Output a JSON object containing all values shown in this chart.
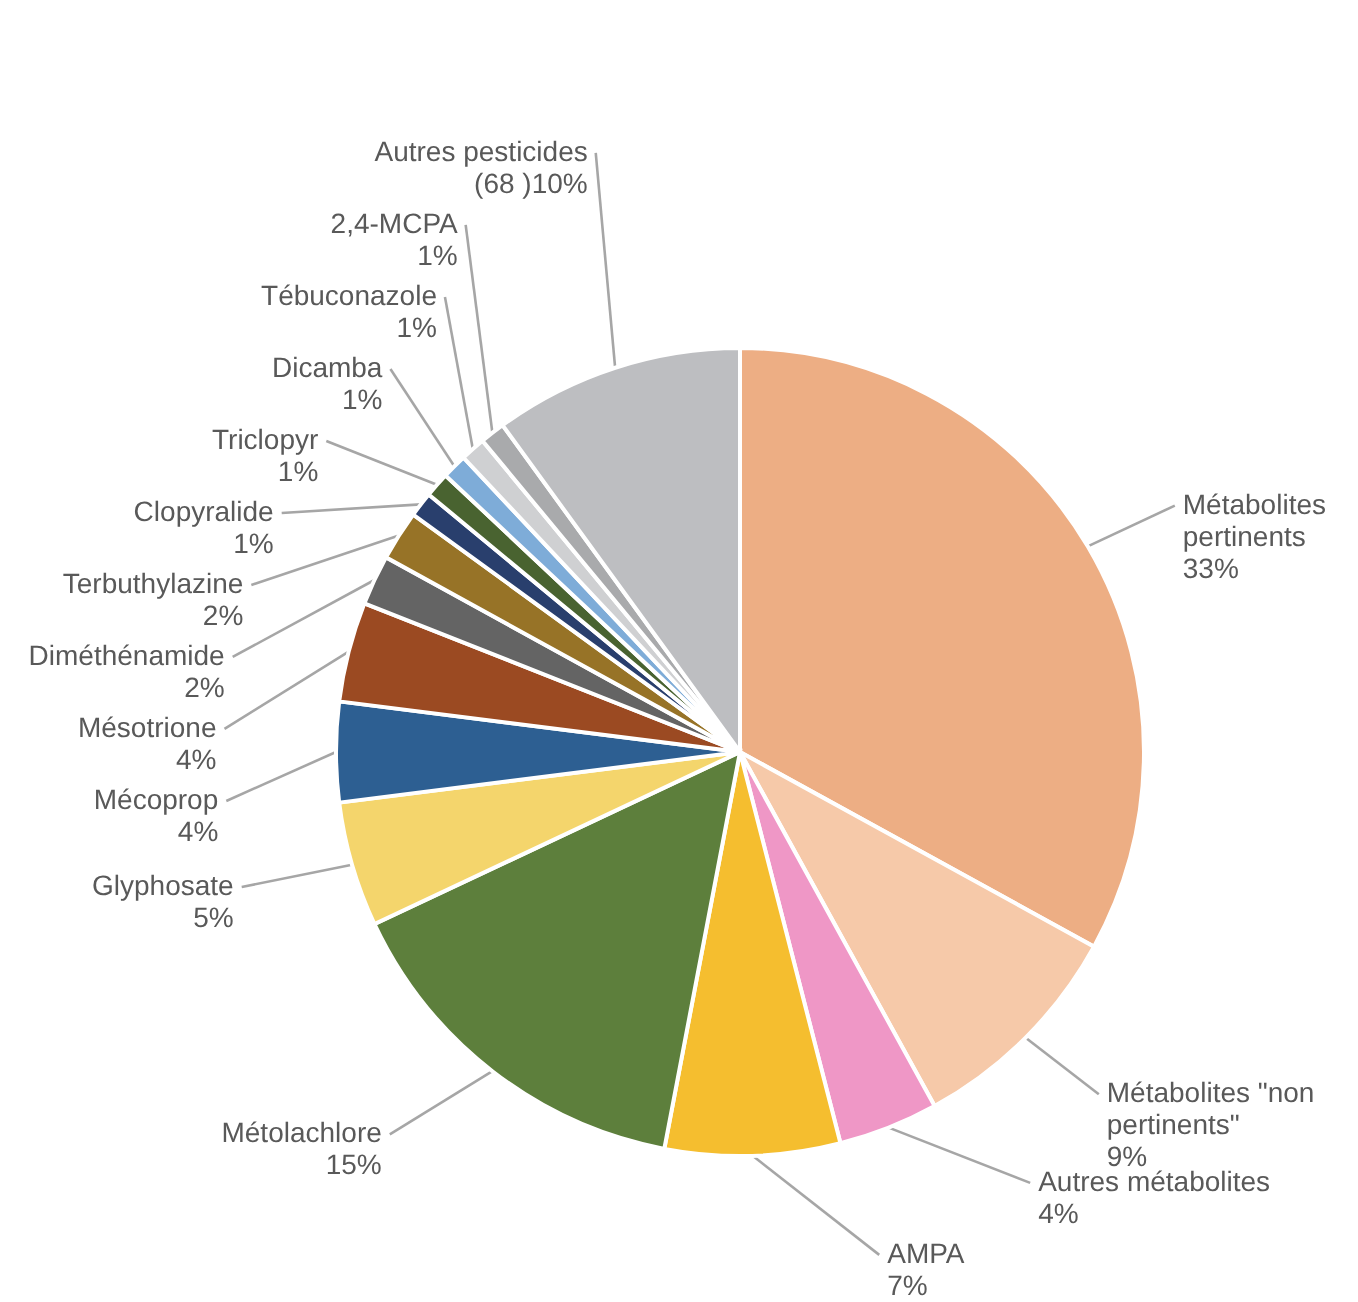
{
  "chart_data": {
    "type": "pie",
    "categories": [
      "Métabolites pertinents",
      "Métabolites \"non pertinents\"",
      "Autres métabolites",
      "AMPA",
      "Métolachlore",
      "Glyphosate",
      "Mécoprop",
      "Mésotrione",
      "Diméthénamide",
      "Terbuthylazine",
      "Clopyralide",
      "Triclopyr",
      "Dicamba",
      "Tébuconazole",
      "2,4-MCPA",
      "Autres pesticides"
    ],
    "values": [
      33,
      9,
      4,
      7,
      15,
      5,
      4,
      4,
      2,
      2,
      1,
      1,
      1,
      1,
      1,
      10
    ],
    "value_labels": [
      "33%",
      "9%",
      "4%",
      "7%",
      "15%",
      "5%",
      "4%",
      "4%",
      "2%",
      "2%",
      "1%",
      "1%",
      "1%",
      "1%",
      "1%",
      "(68 )10%"
    ],
    "colors": [
      "#edae84",
      "#f6c9a9",
      "#ef97c6",
      "#f5be2f",
      "#5d7f3c",
      "#f4d56c",
      "#2d5f92",
      "#9b4a22",
      "#646464",
      "#977327",
      "#293f6d",
      "#496330",
      "#7eacd8",
      "#cfd0d2",
      "#a9aaac",
      "#bdbec1"
    ]
  }
}
